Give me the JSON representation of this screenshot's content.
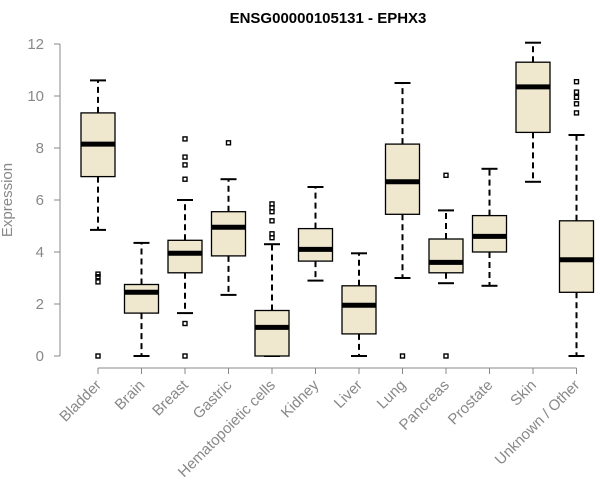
{
  "chart_data": {
    "type": "box",
    "title": "ENSG00000105131 - EPHX3",
    "xlabel": "",
    "ylabel": "Expression",
    "ylim": [
      0,
      12
    ],
    "yticks": [
      0,
      2,
      4,
      6,
      8,
      10,
      12
    ],
    "categories": [
      "Bladder",
      "Brain",
      "Breast",
      "Gastric",
      "Hematopoietic cells",
      "Kidney",
      "Liver",
      "Lung",
      "Pancreas",
      "Prostate",
      "Skin",
      "Unknown / Other"
    ],
    "box_fill": "#efe8cf",
    "boxes": [
      {
        "min": 4.85,
        "q1": 6.9,
        "median": 8.15,
        "q3": 9.35,
        "max": 10.6,
        "outliers": [
          3.15,
          3.05,
          2.85,
          0.0
        ]
      },
      {
        "min": 0.0,
        "q1": 1.65,
        "median": 2.45,
        "q3": 2.75,
        "max": 4.35,
        "outliers": []
      },
      {
        "min": 1.65,
        "q1": 3.2,
        "median": 3.95,
        "q3": 4.45,
        "max": 6.0,
        "outliers": [
          8.35,
          7.65,
          7.35,
          6.8,
          1.25,
          0.0
        ]
      },
      {
        "min": 2.35,
        "q1": 3.85,
        "median": 4.95,
        "q3": 5.55,
        "max": 6.8,
        "outliers": [
          8.2
        ]
      },
      {
        "min": 0.0,
        "q1": 0.0,
        "median": 1.1,
        "q3": 1.75,
        "max": 4.3,
        "outliers": [
          5.85,
          5.7,
          5.55,
          5.2,
          4.7,
          4.55
        ]
      },
      {
        "min": 2.9,
        "q1": 3.65,
        "median": 4.1,
        "q3": 4.9,
        "max": 6.5,
        "outliers": []
      },
      {
        "min": 0.0,
        "q1": 0.85,
        "median": 1.95,
        "q3": 2.7,
        "max": 3.95,
        "outliers": []
      },
      {
        "min": 3.0,
        "q1": 5.45,
        "median": 6.7,
        "q3": 8.15,
        "max": 10.5,
        "outliers": [
          0.0
        ]
      },
      {
        "min": 2.8,
        "q1": 3.2,
        "median": 3.6,
        "q3": 4.5,
        "max": 5.6,
        "outliers": [
          6.95,
          0.0
        ]
      },
      {
        "min": 2.7,
        "q1": 4.0,
        "median": 4.6,
        "q3": 5.4,
        "max": 7.2,
        "outliers": []
      },
      {
        "min": 6.7,
        "q1": 8.6,
        "median": 10.35,
        "q3": 11.3,
        "max": 12.05,
        "outliers": []
      },
      {
        "min": 0.0,
        "q1": 2.45,
        "median": 3.7,
        "q3": 5.2,
        "max": 8.5,
        "outliers": [
          10.55,
          10.15,
          9.95,
          9.7,
          9.35
        ]
      }
    ]
  }
}
